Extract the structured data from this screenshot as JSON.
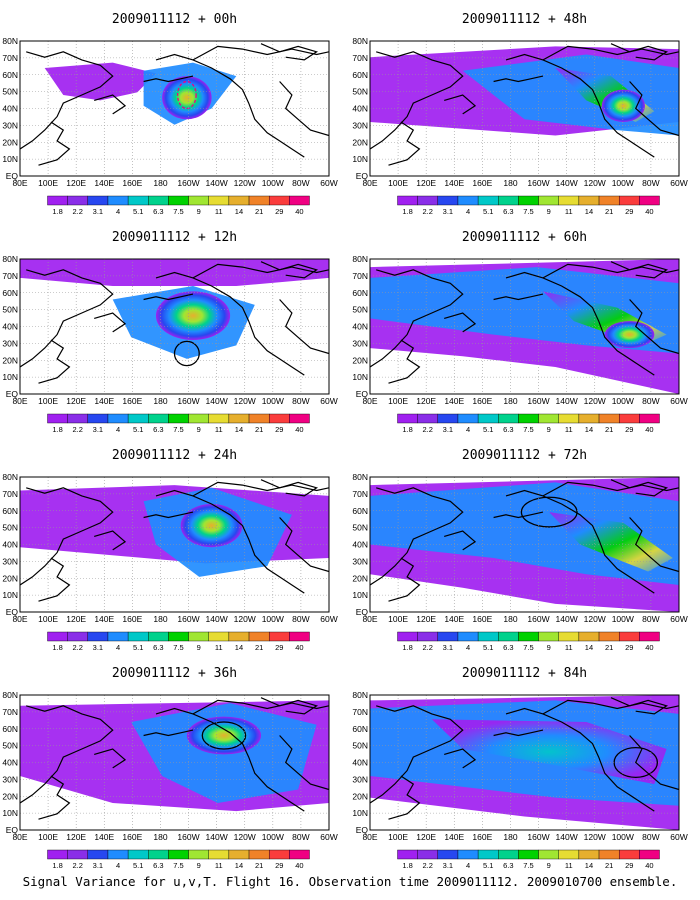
{
  "caption": "Signal Variance for u,v,T. Flight 16. Observation time 2009011112. 2009010700 ensemble.",
  "longitude_labels": [
    "80E",
    "100E",
    "120E",
    "140E",
    "160E",
    "180",
    "160W",
    "140W",
    "120W",
    "100W",
    "80W",
    "60W"
  ],
  "latitude_labels": [
    "80N",
    "70N",
    "60N",
    "50N",
    "40N",
    "30N",
    "20N",
    "10N",
    "EQ"
  ],
  "colorbar": {
    "labels": [
      "1.8",
      "2.2",
      "3.1",
      "4",
      "5.1",
      "6.3",
      "7.5",
      "9",
      "11",
      "14",
      "21",
      "29",
      "40"
    ],
    "colors": [
      "#a020f0",
      "#8a2ee8",
      "#2747f0",
      "#1f8cff",
      "#00c8c8",
      "#00d28c",
      "#00d200",
      "#a0e632",
      "#e6dc32",
      "#e6af2d",
      "#f08228",
      "#fa3c3c",
      "#f00082"
    ]
  },
  "panels": [
    {
      "title": "2009011112 + 00h",
      "col": 0,
      "row": 0
    },
    {
      "title": "2009011112 + 12h",
      "col": 0,
      "row": 1
    },
    {
      "title": "2009011112 + 24h",
      "col": 0,
      "row": 2
    },
    {
      "title": "2009011112 + 36h",
      "col": 0,
      "row": 3
    },
    {
      "title": "2009011112 + 48h",
      "col": 1,
      "row": 0
    },
    {
      "title": "2009011112 + 60h",
      "col": 1,
      "row": 1
    },
    {
      "title": "2009011112 + 72h",
      "col": 1,
      "row": 2
    },
    {
      "title": "2009011112 + 84h",
      "col": 1,
      "row": 3
    }
  ]
}
